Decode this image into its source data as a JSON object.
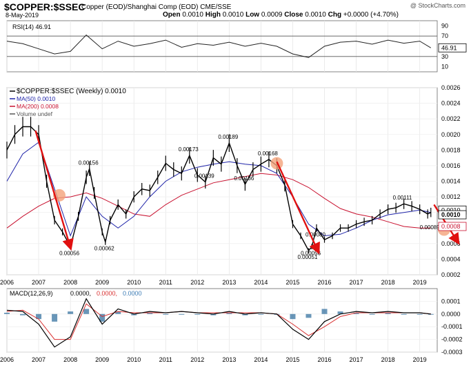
{
  "header": {
    "symbol": "$COPPER:$SSEC",
    "subtitle": "Copper (EOD)/Shanghai Comp (EOD)  CME/SSE",
    "date": "8-May-2019",
    "watermark": "@ StockCharts.com",
    "open_label": "Open",
    "open": "0.0010",
    "high_label": "High",
    "high": "0.0010",
    "low_label": "Low",
    "low": "0.0009",
    "close_label": "Close",
    "close": "0.0010",
    "chg_label": "Chg",
    "chg": "+0.0000 (+4.70%)"
  },
  "colors": {
    "ma50": "#1d22a8",
    "ma200": "#c8102e",
    "bars": "#000000",
    "arrows": "#e01010",
    "markers": "#f4a37a",
    "macd_hist": "#2a6a9a",
    "macd_signal": "#d93030",
    "rsi_fill": "#8a6a6a"
  },
  "chart_data": [
    {
      "type": "line",
      "title": "RSI(14) 46.91",
      "label": "RSI(14) 46.91",
      "value_label": "46.91",
      "ylim": [
        0,
        100
      ],
      "levels": [
        30,
        70
      ],
      "yticks": [
        "90",
        "70",
        "50",
        "30",
        "10"
      ],
      "x": [
        2006.0,
        2006.5,
        2007.0,
        2007.5,
        2008.0,
        2008.5,
        2009.0,
        2009.5,
        2010.0,
        2010.5,
        2011.0,
        2011.5,
        2012.0,
        2012.5,
        2013.0,
        2013.5,
        2014.0,
        2014.5,
        2015.0,
        2015.5,
        2016.0,
        2016.5,
        2017.0,
        2017.5,
        2018.0,
        2018.5,
        2019.0,
        2019.35
      ],
      "values": [
        60,
        55,
        45,
        35,
        40,
        72,
        45,
        60,
        50,
        55,
        62,
        48,
        55,
        52,
        58,
        50,
        56,
        50,
        35,
        28,
        50,
        58,
        60,
        54,
        62,
        56,
        60,
        46.91
      ]
    },
    {
      "type": "line",
      "title": "$COPPER:$SSEC (Weekly) 0.0010",
      "legend": [
        {
          "name": "$COPPER:$SSEC (Weekly) 0.0010"
        },
        {
          "name": "MA(50) 0.0010"
        },
        {
          "name": "MA(200) 0.0008"
        },
        {
          "name": "Volume undef"
        }
      ],
      "ylim": [
        0.0002,
        0.0026
      ],
      "yticks": [
        "0.0026",
        "0.0024",
        "0.0022",
        "0.0020",
        "0.0018",
        "0.0016",
        "0.0014",
        "0.0012",
        "0.0010",
        "0.0008",
        "0.0006",
        "0.0004",
        "0.0002"
      ],
      "xlim": [
        2006.0,
        2019.55
      ],
      "xticks": [
        "2006",
        "2007",
        "2008",
        "2009",
        "2010",
        "2011",
        "2012",
        "2013",
        "2014",
        "2015",
        "2016",
        "2017",
        "2018",
        "2019"
      ],
      "series": [
        {
          "name": "$COPPER:$SSEC",
          "x": [
            2006.0,
            2006.25,
            2006.5,
            2006.75,
            2007.0,
            2007.25,
            2007.5,
            2007.75,
            2008.0,
            2008.25,
            2008.5,
            2008.6,
            2008.75,
            2009.0,
            2009.1,
            2009.25,
            2009.5,
            2009.75,
            2010.0,
            2010.25,
            2010.5,
            2010.75,
            2011.0,
            2011.25,
            2011.5,
            2011.75,
            2012.0,
            2012.25,
            2012.5,
            2012.75,
            2013.0,
            2013.25,
            2013.5,
            2013.75,
            2014.0,
            2014.25,
            2014.5,
            2014.75,
            2015.0,
            2015.25,
            2015.5,
            2015.6,
            2015.75,
            2016.0,
            2016.25,
            2016.5,
            2016.75,
            2017.0,
            2017.25,
            2017.5,
            2017.75,
            2018.0,
            2018.25,
            2018.5,
            2018.75,
            2019.0,
            2019.25,
            2019.35
          ],
          "values": [
            0.0018,
            0.002,
            0.0021,
            0.0021,
            0.002,
            0.0014,
            0.0009,
            0.00075,
            0.00056,
            0.00095,
            0.00145,
            0.00156,
            0.00125,
            0.00075,
            0.00062,
            0.0009,
            0.0011,
            0.00098,
            0.0012,
            0.0013,
            0.00128,
            0.00145,
            0.00163,
            0.00155,
            0.0015,
            0.00173,
            0.00148,
            0.00139,
            0.0017,
            0.00162,
            0.00189,
            0.0016,
            0.00136,
            0.00155,
            0.00162,
            0.00168,
            0.0016,
            0.00135,
            0.00085,
            0.0007,
            0.00051,
            0.00056,
            0.0008,
            0.00065,
            0.0007,
            0.0008,
            0.0008,
            0.00085,
            0.00088,
            0.0009,
            0.00098,
            0.00104,
            0.00106,
            0.00111,
            0.00108,
            0.00104,
            0.00098,
            0.001
          ]
        },
        {
          "name": "MA(50)",
          "x": [
            2006.0,
            2006.5,
            2007.0,
            2007.5,
            2008.0,
            2008.5,
            2009.0,
            2009.5,
            2010.0,
            2010.5,
            2011.0,
            2011.5,
            2012.0,
            2012.5,
            2013.0,
            2013.5,
            2014.0,
            2014.5,
            2015.0,
            2015.5,
            2016.0,
            2016.5,
            2017.0,
            2017.5,
            2018.0,
            2018.5,
            2019.0,
            2019.35
          ],
          "values": [
            0.0014,
            0.00175,
            0.0019,
            0.0013,
            0.0007,
            0.0012,
            0.00095,
            0.0008,
            0.00095,
            0.0012,
            0.0014,
            0.00152,
            0.00158,
            0.00162,
            0.00165,
            0.00162,
            0.0016,
            0.0015,
            0.0012,
            0.00085,
            0.0007,
            0.00072,
            0.0008,
            0.0009,
            0.00097,
            0.001,
            0.00103,
            0.001
          ]
        },
        {
          "name": "MA(200)",
          "x": [
            2006.0,
            2006.5,
            2007.0,
            2007.5,
            2008.0,
            2008.5,
            2009.0,
            2009.5,
            2010.0,
            2010.5,
            2011.0,
            2011.5,
            2012.0,
            2012.5,
            2013.0,
            2013.5,
            2014.0,
            2014.5,
            2015.0,
            2015.5,
            2016.0,
            2016.5,
            2017.0,
            2017.5,
            2018.0,
            2018.5,
            2019.0,
            2019.35
          ],
          "values": [
            0.0008,
            0.00095,
            0.00108,
            0.00118,
            0.0012,
            0.00125,
            0.00118,
            0.00108,
            0.00098,
            0.00095,
            0.0011,
            0.00122,
            0.0013,
            0.00138,
            0.00142,
            0.00146,
            0.0015,
            0.00148,
            0.00142,
            0.00132,
            0.00118,
            0.00105,
            0.00098,
            0.00094,
            0.00088,
            0.00082,
            0.0008,
            0.0008
          ]
        }
      ],
      "annotations": [
        {
          "text": "0.00056",
          "x": 2008.0,
          "y": 0.00056
        },
        {
          "text": "0.00156",
          "x": 2008.6,
          "y": 0.00156
        },
        {
          "text": "0.00062",
          "x": 2009.1,
          "y": 0.00062
        },
        {
          "text": "0.00173",
          "x": 2011.75,
          "y": 0.00173
        },
        {
          "text": "0.00139",
          "x": 2012.25,
          "y": 0.00139
        },
        {
          "text": "0.00189",
          "x": 2013.0,
          "y": 0.00189
        },
        {
          "text": "0.00136",
          "x": 2013.5,
          "y": 0.00136
        },
        {
          "text": "0.00168",
          "x": 2014.25,
          "y": 0.00168
        },
        {
          "text": "0.00080",
          "x": 2015.75,
          "y": 0.0008
        },
        {
          "text": "0.00056",
          "x": 2015.6,
          "y": 0.00056
        },
        {
          "text": "0.00051",
          "x": 2015.5,
          "y": 0.00051
        },
        {
          "text": "0.00111",
          "x": 2018.5,
          "y": 0.00111
        },
        {
          "text": "0.00089",
          "x": 2019.35,
          "y": 0.00089
        }
      ],
      "value_badges": [
        "0.0010",
        "0.0010",
        "0.0008"
      ],
      "arrows": [
        {
          "from": [
            2006.9,
            0.00205
          ],
          "to": [
            2008.0,
            0.00055
          ]
        },
        {
          "from": [
            2014.5,
            0.00165
          ],
          "to": [
            2015.8,
            0.0005
          ]
        },
        {
          "from": [
            2019.45,
            0.0011
          ],
          "to": [
            2020.2,
            0.00062
          ]
        }
      ]
    },
    {
      "type": "line",
      "title": "MACD(12,26,9) 0.0000, 0.0000, 0.0000",
      "label": "MACD(12,26,9)",
      "label_values": [
        "0.0000,",
        "0.0000,",
        "0.0000"
      ],
      "ylim": [
        -0.0003,
        0.0002
      ],
      "yticks": [
        "0.0001",
        "0.0000",
        "-0.0001",
        "-0.0002",
        "-0.0003"
      ],
      "xticks": [
        "2006",
        "2007",
        "2008",
        "2009",
        "2010",
        "2011",
        "2012",
        "2013",
        "2014",
        "2015",
        "2016",
        "2017",
        "2018",
        "2019"
      ],
      "x": [
        2006.0,
        2006.5,
        2007.0,
        2007.5,
        2008.0,
        2008.5,
        2009.0,
        2009.5,
        2010.0,
        2010.5,
        2011.0,
        2011.5,
        2012.0,
        2012.5,
        2013.0,
        2013.5,
        2014.0,
        2014.5,
        2015.0,
        2015.5,
        2016.0,
        2016.5,
        2017.0,
        2017.5,
        2018.0,
        2018.5,
        2019.0,
        2019.35
      ],
      "macd": [
        3e-05,
        2e-05,
        -8e-05,
        -0.00026,
        -0.00018,
        0.00012,
        -8e-05,
        4e-05,
        0.0,
        2e-05,
        1e-05,
        2e-05,
        1e-05,
        0.0,
        2e-05,
        0.0,
        1e-05,
        0.0,
        -0.00012,
        -0.0002,
        -6e-05,
        0.0,
        2e-05,
        1e-05,
        2e-05,
        1e-05,
        1e-05,
        0.0
      ],
      "signal": [
        2e-05,
        3e-05,
        -4e-05,
        -0.0002,
        -0.0002,
        8e-05,
        -2e-05,
        2e-05,
        1e-05,
        1e-05,
        1e-05,
        2e-05,
        1e-05,
        1e-05,
        1e-05,
        1e-05,
        1e-05,
        0.0,
        -8e-05,
        -0.00017,
        -0.0001,
        -2e-05,
        1e-05,
        1e-05,
        1e-05,
        1e-05,
        1e-05,
        0.0
      ]
    }
  ]
}
